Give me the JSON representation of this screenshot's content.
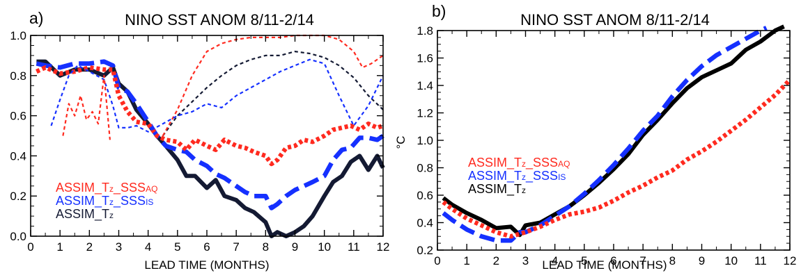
{
  "chart_data": [
    {
      "type": "line",
      "panel_label": "a)",
      "title": "NINO SST ANOM 8/11-2/14",
      "xlabel": "LEAD TIME (MONTHS)",
      "ylabel": "",
      "xlim": [
        0,
        12
      ],
      "ylim": [
        0.0,
        1.0
      ],
      "xticks": [
        "0",
        "1",
        "2",
        "3",
        "4",
        "5",
        "6",
        "7",
        "8",
        "9",
        "10",
        "11",
        "12"
      ],
      "yticks": [
        "0.0",
        "0.2",
        "0.4",
        "0.6",
        "0.8",
        "1.0"
      ],
      "legend": [
        {
          "text": "ASSIM_T",
          "sub1": "z",
          "mid": "_SSS",
          "sub2": "AQ",
          "color": "#ff2a1f"
        },
        {
          "text": "ASSIM_T",
          "sub1": "z",
          "mid": "_SSS",
          "sub2": "IS",
          "color": "#1530ff"
        },
        {
          "text": "ASSIM_T",
          "sub1": "z",
          "mid": "",
          "sub2": "",
          "color": "#141a33"
        }
      ],
      "series": [
        {
          "color": "#141a33",
          "style": "thick-solid",
          "x": [
            0.2,
            0.5,
            1.0,
            1.5,
            2.0,
            2.5,
            2.8,
            3.0,
            3.3,
            3.6,
            4.0,
            4.3,
            4.6,
            5.0,
            5.3,
            5.6,
            6.0,
            6.3,
            6.6,
            7.0,
            7.3,
            7.6,
            8.0,
            8.2,
            8.4,
            8.7,
            9.0,
            9.3,
            9.6,
            10.0,
            10.3,
            10.6,
            10.9,
            11.2,
            11.5,
            11.8,
            12.0
          ],
          "y": [
            0.87,
            0.87,
            0.8,
            0.83,
            0.83,
            0.8,
            0.84,
            0.76,
            0.72,
            0.63,
            0.56,
            0.5,
            0.45,
            0.38,
            0.3,
            0.3,
            0.24,
            0.28,
            0.2,
            0.18,
            0.14,
            0.12,
            0.07,
            0.0,
            0.02,
            0.0,
            0.02,
            0.05,
            0.1,
            0.2,
            0.27,
            0.3,
            0.37,
            0.4,
            0.33,
            0.4,
            0.34
          ]
        },
        {
          "color": "#1530ff",
          "style": "thick-dash",
          "x": [
            0.2,
            0.5,
            1.0,
            1.5,
            2.0,
            2.5,
            2.8,
            3.0,
            3.3,
            3.6,
            4.0,
            4.3,
            4.6,
            5.0,
            5.3,
            5.6,
            6.0,
            6.3,
            6.6,
            7.0,
            7.3,
            7.6,
            8.0,
            8.2,
            8.4,
            8.7,
            9.0,
            9.3,
            9.6,
            10.0,
            10.3,
            10.6,
            10.9,
            11.2,
            11.5,
            11.8,
            12.0
          ],
          "y": [
            0.86,
            0.85,
            0.84,
            0.86,
            0.86,
            0.87,
            0.85,
            0.74,
            0.72,
            0.66,
            0.57,
            0.5,
            0.45,
            0.43,
            0.42,
            0.38,
            0.35,
            0.31,
            0.29,
            0.25,
            0.22,
            0.2,
            0.2,
            0.14,
            0.16,
            0.2,
            0.23,
            0.25,
            0.27,
            0.3,
            0.38,
            0.43,
            0.44,
            0.49,
            0.49,
            0.48,
            0.5
          ]
        },
        {
          "color": "#ff2a1f",
          "style": "thick-dot",
          "x": [
            0.2,
            0.5,
            1.0,
            1.5,
            2.0,
            2.5,
            2.8,
            3.0,
            3.3,
            3.6,
            4.0,
            4.3,
            4.6,
            5.0,
            5.3,
            5.6,
            6.0,
            6.3,
            6.6,
            7.0,
            7.3,
            7.6,
            8.0,
            8.2,
            8.4,
            8.7,
            9.0,
            9.3,
            9.6,
            10.0,
            10.3,
            10.6,
            10.9,
            11.2,
            11.5,
            11.8,
            12.0
          ],
          "y": [
            0.82,
            0.84,
            0.81,
            0.82,
            0.84,
            0.83,
            0.83,
            0.7,
            0.62,
            0.57,
            0.56,
            0.5,
            0.48,
            0.47,
            0.43,
            0.48,
            0.45,
            0.43,
            0.48,
            0.45,
            0.44,
            0.42,
            0.4,
            0.36,
            0.38,
            0.44,
            0.45,
            0.48,
            0.47,
            0.5,
            0.53,
            0.54,
            0.55,
            0.53,
            0.56,
            0.54,
            0.55
          ]
        },
        {
          "color": "#141a33",
          "style": "thin-dash",
          "x": [
            4.5,
            5.0,
            5.5,
            6.0,
            6.5,
            7.0,
            7.5,
            8.0,
            8.5,
            9.0,
            9.5,
            10.0,
            10.5,
            11.0,
            11.5,
            12.0
          ],
          "y": [
            0.5,
            0.6,
            0.67,
            0.74,
            0.8,
            0.85,
            0.88,
            0.9,
            0.9,
            0.92,
            0.91,
            0.89,
            0.85,
            0.79,
            0.7,
            0.63
          ]
        },
        {
          "color": "#ff2a1f",
          "style": "thin-dash",
          "x": [
            4.5,
            5.0,
            5.5,
            6.0,
            6.5,
            7.0,
            7.5,
            8.0,
            8.5,
            9.0,
            9.5,
            10.0,
            10.5,
            11.0,
            11.3,
            11.6,
            12.0
          ],
          "y": [
            0.5,
            0.63,
            0.8,
            0.92,
            0.96,
            0.98,
            0.99,
            0.99,
            0.99,
            1.0,
            1.0,
            1.0,
            0.98,
            0.92,
            0.84,
            0.86,
            0.9
          ]
        },
        {
          "color": "#1530ff",
          "style": "thin-dash",
          "x": [
            0.7,
            1.0,
            1.3,
            1.6,
            2.0,
            2.5,
            2.8,
            3.0,
            3.3,
            3.6,
            4.0,
            4.5,
            5.0,
            5.5,
            6.0,
            6.5,
            7.0,
            7.5,
            8.0,
            8.5,
            9.0,
            9.5,
            10.0,
            10.5,
            11.0,
            11.5,
            12.0
          ],
          "y": [
            0.55,
            0.68,
            0.8,
            0.85,
            0.82,
            0.78,
            0.65,
            0.54,
            0.54,
            0.55,
            0.52,
            0.56,
            0.6,
            0.62,
            0.66,
            0.64,
            0.7,
            0.74,
            0.78,
            0.82,
            0.85,
            0.88,
            0.86,
            0.7,
            0.55,
            0.65,
            0.8
          ]
        },
        {
          "color": "#ff2a1f",
          "style": "thin-dash",
          "x": [
            1.1,
            1.3,
            1.5,
            1.7,
            1.9,
            2.1,
            2.3,
            2.5,
            2.7
          ],
          "y": [
            0.5,
            0.66,
            0.6,
            0.7,
            0.58,
            0.62,
            0.56,
            0.8,
            0.48
          ]
        }
      ]
    },
    {
      "type": "line",
      "panel_label": "b)",
      "title": "NINO SST ANOM 8/11-2/14",
      "xlabel": "LEAD TIME (MONTHS)",
      "ylabel": "°C",
      "xlim": [
        0,
        12
      ],
      "ylim": [
        0.2,
        1.8
      ],
      "xticks": [
        "0",
        "1",
        "2",
        "3",
        "4",
        "5",
        "6",
        "7",
        "8",
        "9",
        "10",
        "11",
        "12"
      ],
      "yticks": [
        "0.2",
        "0.4",
        "0.6",
        "0.8",
        "1.0",
        "1.2",
        "1.4",
        "1.6",
        "1.8"
      ],
      "legend": [
        {
          "text": "ASSIM_T",
          "sub1": "z",
          "mid": "_SSS",
          "sub2": "AQ",
          "color": "#ff2a1f"
        },
        {
          "text": "ASSIM_T",
          "sub1": "z",
          "mid": "_SSS",
          "sub2": "IS",
          "color": "#1530ff"
        },
        {
          "text": "ASSIM_T",
          "sub1": "z",
          "mid": "",
          "sub2": "",
          "color": "#000000"
        }
      ],
      "series": [
        {
          "color": "#000000",
          "style": "thick-solid",
          "x": [
            0.2,
            0.5,
            1.0,
            1.5,
            2.0,
            2.5,
            2.8,
            3.0,
            3.5,
            4.0,
            4.5,
            5.0,
            5.5,
            6.0,
            6.5,
            7.0,
            7.5,
            8.0,
            8.5,
            9.0,
            9.5,
            10.0,
            10.5,
            11.0,
            11.5,
            11.8
          ],
          "y": [
            0.58,
            0.53,
            0.47,
            0.42,
            0.36,
            0.37,
            0.31,
            0.38,
            0.4,
            0.46,
            0.52,
            0.6,
            0.69,
            0.79,
            0.9,
            1.04,
            1.15,
            1.27,
            1.38,
            1.46,
            1.51,
            1.56,
            1.66,
            1.72,
            1.8,
            1.83
          ]
        },
        {
          "color": "#1530ff",
          "style": "thick-dash",
          "x": [
            0.2,
            0.5,
            1.0,
            1.5,
            2.0,
            2.5,
            2.8,
            3.0,
            3.5,
            4.0,
            4.5,
            5.0,
            5.5,
            6.0,
            6.5,
            7.0,
            7.5,
            8.0,
            8.5,
            9.0,
            9.5,
            10.0,
            10.5,
            11.0,
            11.2
          ],
          "y": [
            0.47,
            0.42,
            0.35,
            0.3,
            0.27,
            0.27,
            0.33,
            0.33,
            0.38,
            0.45,
            0.52,
            0.61,
            0.71,
            0.82,
            0.94,
            1.07,
            1.18,
            1.32,
            1.44,
            1.54,
            1.62,
            1.68,
            1.74,
            1.8,
            1.82
          ]
        },
        {
          "color": "#ff2a1f",
          "style": "thick-dot",
          "x": [
            0.2,
            0.5,
            1.0,
            1.5,
            2.0,
            2.5,
            3.0,
            3.5,
            4.0,
            4.5,
            5.0,
            5.5,
            6.0,
            6.5,
            7.0,
            7.5,
            8.0,
            8.5,
            9.0,
            9.5,
            10.0,
            10.5,
            11.0,
            11.5,
            12.0
          ],
          "y": [
            0.55,
            0.5,
            0.43,
            0.38,
            0.33,
            0.3,
            0.33,
            0.37,
            0.42,
            0.46,
            0.48,
            0.51,
            0.56,
            0.62,
            0.67,
            0.73,
            0.78,
            0.86,
            0.92,
            0.99,
            1.07,
            1.15,
            1.24,
            1.33,
            1.44
          ]
        }
      ]
    }
  ]
}
